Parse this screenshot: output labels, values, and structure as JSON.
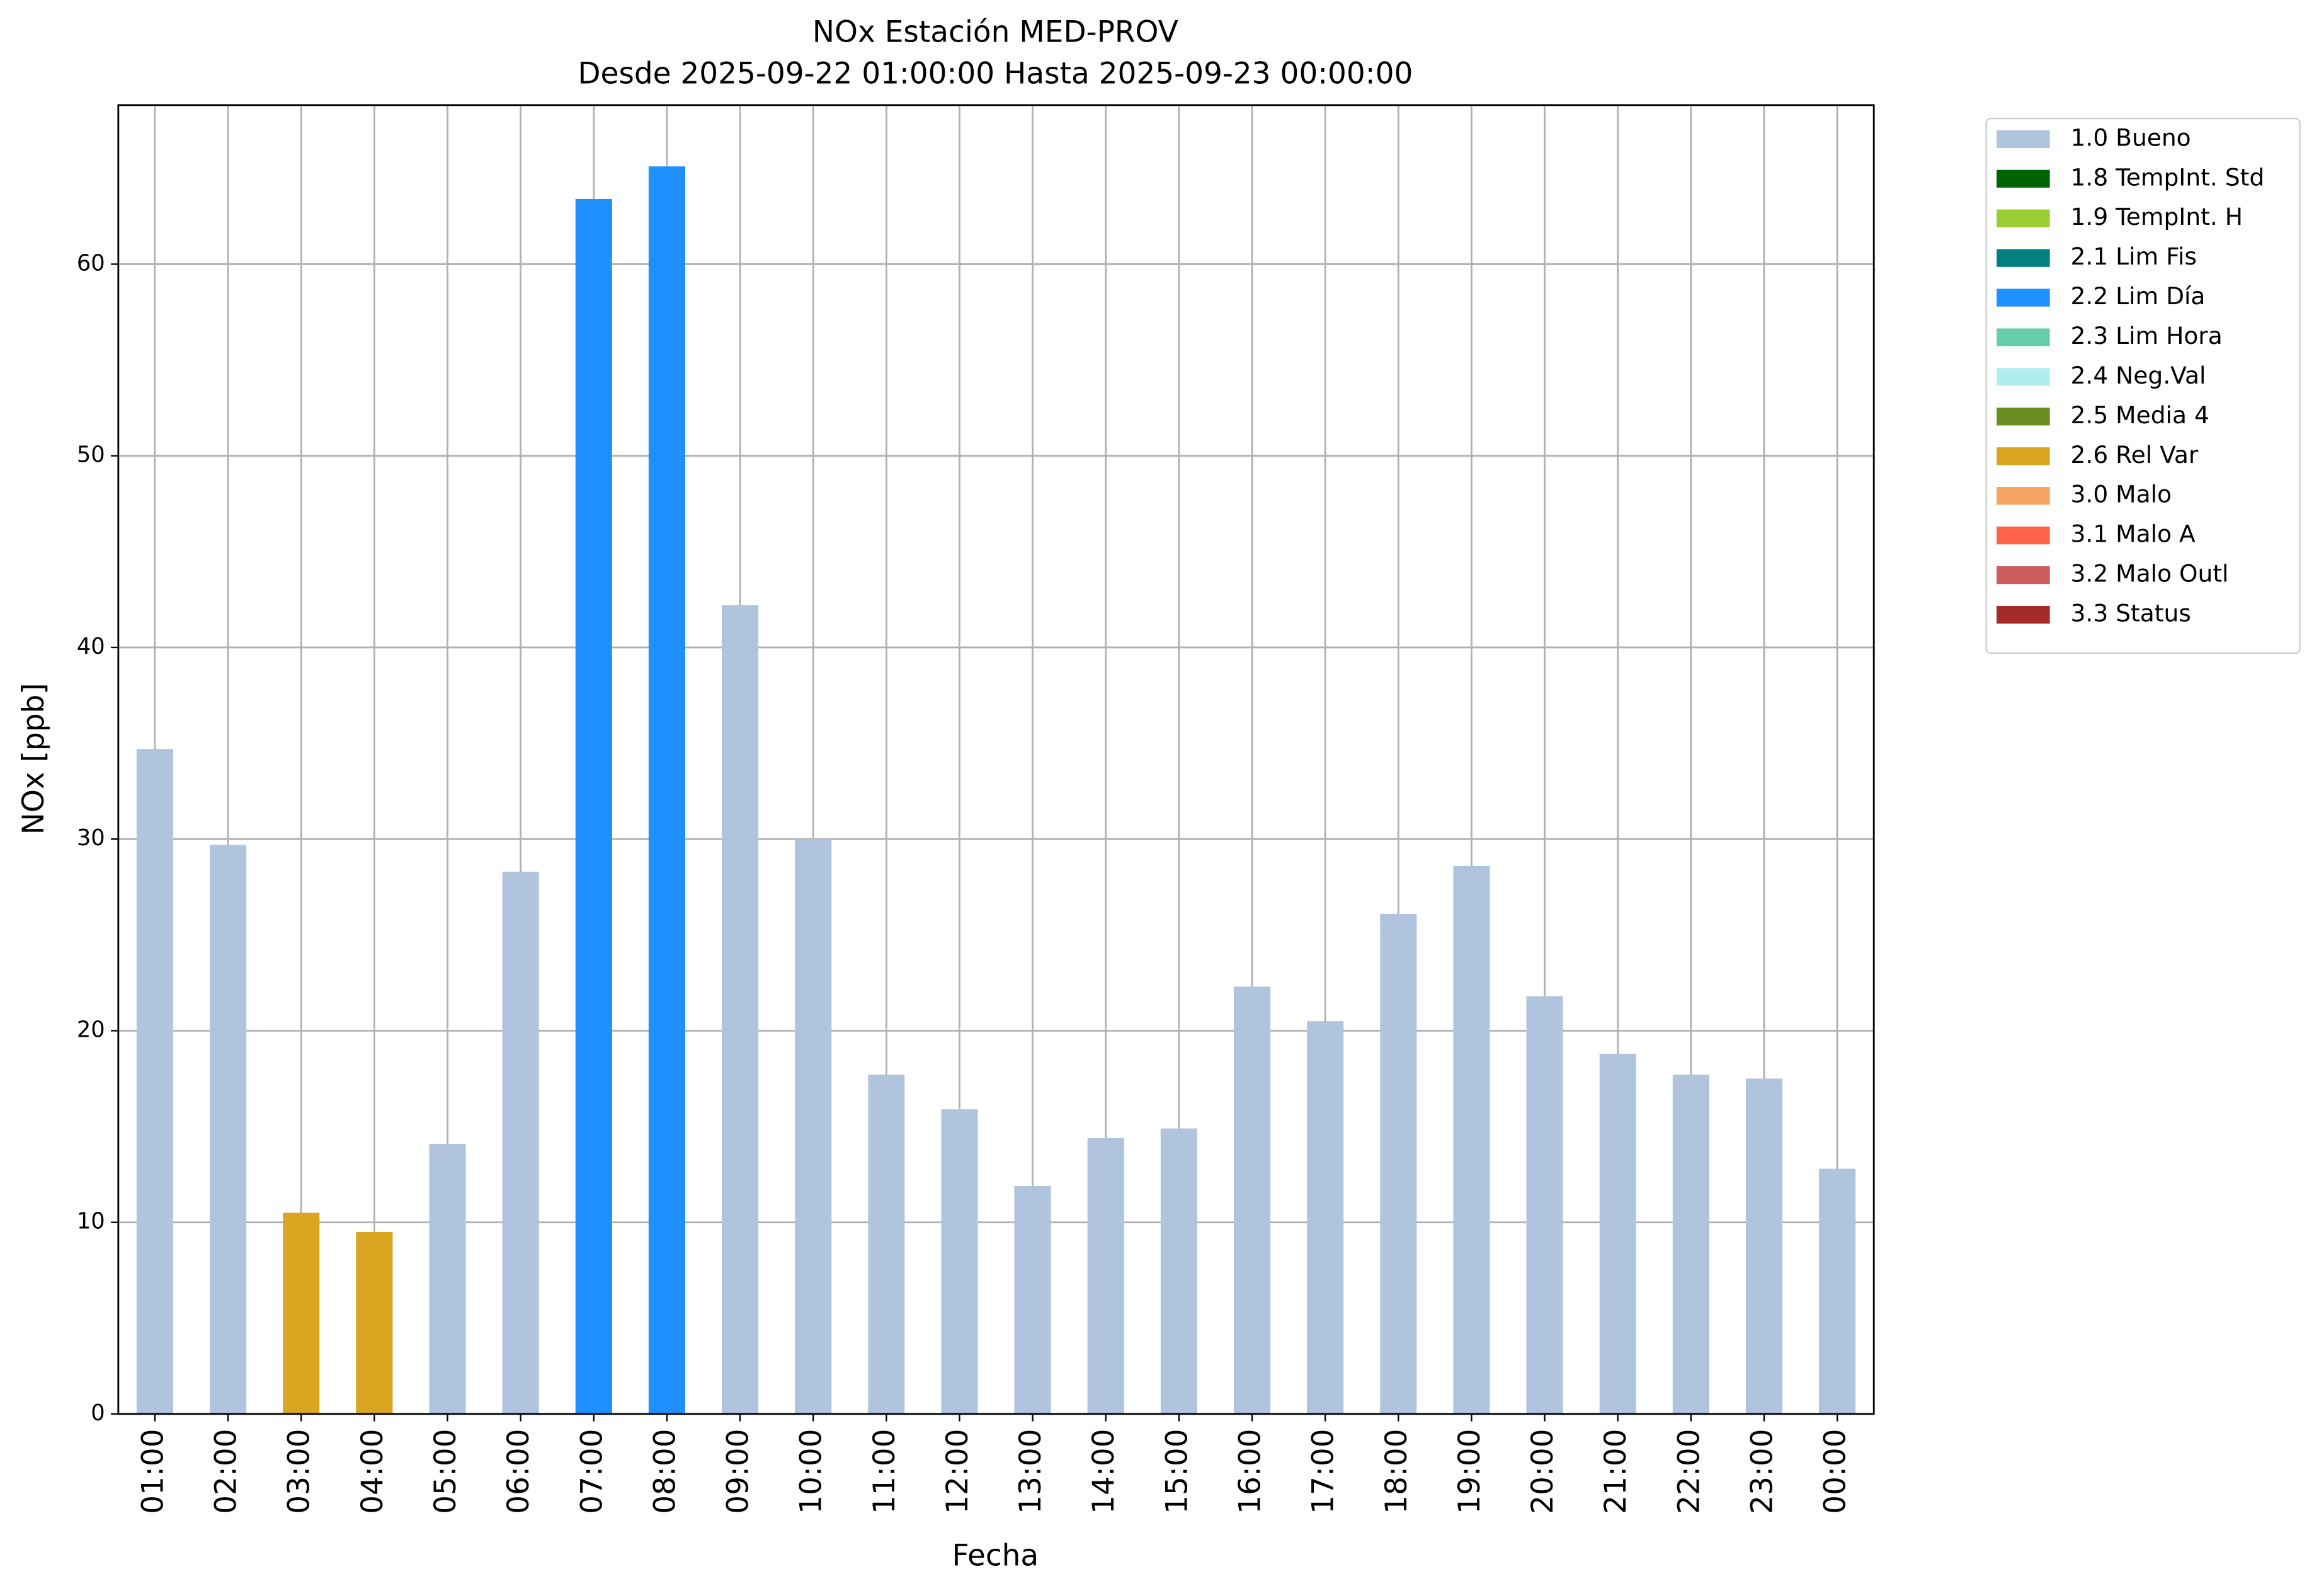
{
  "chart_data": {
    "type": "stacked_bar",
    "title": "NOx Estación MED-PROV",
    "subtitle": "Desde 2025-09-22 01:00:00 Hasta 2025-09-23 00:00:00",
    "x_label": "Fecha",
    "y_label": "NOx [ppb]",
    "categories": [
      "01:00",
      "02:00",
      "03:00",
      "04:00",
      "05:00",
      "06:00",
      "07:00",
      "08:00",
      "09:00",
      "10:00",
      "11:00",
      "12:00",
      "13:00",
      "14:00",
      "15:00",
      "16:00",
      "17:00",
      "18:00",
      "19:00",
      "20:00",
      "21:00",
      "22:00",
      "23:00",
      "00:00"
    ],
    "series": [
      {
        "name": "1.0 Bueno",
        "color": "#b0c4de",
        "values": [
          34.7,
          29.7,
          null,
          null,
          14.1,
          28.3,
          null,
          null,
          42.2,
          30.0,
          17.7,
          15.9,
          11.9,
          14.4,
          14.9,
          22.3,
          20.5,
          26.1,
          28.6,
          21.8,
          18.8,
          17.7,
          17.5,
          12.8
        ]
      },
      {
        "name": "1.8 TempInt. Std",
        "color": "#006400",
        "values": [
          null,
          null,
          null,
          null,
          null,
          null,
          null,
          null,
          null,
          null,
          null,
          null,
          null,
          null,
          null,
          null,
          null,
          null,
          null,
          null,
          null,
          null,
          null,
          null
        ]
      },
      {
        "name": "1.9 TempInt. H",
        "color": "#9acd32",
        "values": [
          null,
          null,
          null,
          null,
          null,
          null,
          null,
          null,
          null,
          null,
          null,
          null,
          null,
          null,
          null,
          null,
          null,
          null,
          null,
          null,
          null,
          null,
          null,
          null
        ]
      },
      {
        "name": "2.1 Lim Fis",
        "color": "#008080",
        "values": [
          null,
          null,
          null,
          null,
          null,
          null,
          null,
          null,
          null,
          null,
          null,
          null,
          null,
          null,
          null,
          null,
          null,
          null,
          null,
          null,
          null,
          null,
          null,
          null
        ]
      },
      {
        "name": "2.2 Lim Día",
        "color": "#1e90ff",
        "values": [
          null,
          null,
          null,
          null,
          null,
          null,
          63.4,
          65.1,
          null,
          null,
          null,
          null,
          null,
          null,
          null,
          null,
          null,
          null,
          null,
          null,
          null,
          null,
          null,
          null
        ]
      },
      {
        "name": "2.3 Lim Hora",
        "color": "#66cdaa",
        "values": [
          null,
          null,
          null,
          null,
          null,
          null,
          null,
          null,
          null,
          null,
          null,
          null,
          null,
          null,
          null,
          null,
          null,
          null,
          null,
          null,
          null,
          null,
          null,
          null
        ]
      },
      {
        "name": "2.4 Neg.Val",
        "color": "#afeeee",
        "values": [
          null,
          null,
          null,
          null,
          null,
          null,
          null,
          null,
          null,
          null,
          null,
          null,
          null,
          null,
          null,
          null,
          null,
          null,
          null,
          null,
          null,
          null,
          null,
          null
        ]
      },
      {
        "name": "2.5 Media 4",
        "color": "#6b8e23",
        "values": [
          null,
          null,
          null,
          null,
          null,
          null,
          null,
          null,
          null,
          null,
          null,
          null,
          null,
          null,
          null,
          null,
          null,
          null,
          null,
          null,
          null,
          null,
          null,
          null
        ]
      },
      {
        "name": "2.6 Rel Var",
        "color": "#daa520",
        "values": [
          null,
          null,
          10.5,
          9.5,
          null,
          null,
          null,
          null,
          null,
          null,
          null,
          null,
          null,
          null,
          null,
          null,
          null,
          null,
          null,
          null,
          null,
          null,
          null,
          null
        ]
      },
      {
        "name": "3.0 Malo",
        "color": "#f4a460",
        "values": [
          null,
          null,
          null,
          null,
          null,
          null,
          null,
          null,
          null,
          null,
          null,
          null,
          null,
          null,
          null,
          null,
          null,
          null,
          null,
          null,
          null,
          null,
          null,
          null
        ]
      },
      {
        "name": "3.1 Malo A",
        "color": "#ff6347",
        "values": [
          null,
          null,
          null,
          null,
          null,
          null,
          null,
          null,
          null,
          null,
          null,
          null,
          null,
          null,
          null,
          null,
          null,
          null,
          null,
          null,
          null,
          null,
          null,
          null
        ]
      },
      {
        "name": "3.2 Malo Outl",
        "color": "#cd5c5c",
        "values": [
          null,
          null,
          null,
          null,
          null,
          null,
          null,
          null,
          null,
          null,
          null,
          null,
          null,
          null,
          null,
          null,
          null,
          null,
          null,
          null,
          null,
          null,
          null,
          null
        ]
      },
      {
        "name": "3.3 Status",
        "color": "#a52a2a",
        "values": [
          null,
          null,
          null,
          null,
          null,
          null,
          null,
          null,
          null,
          null,
          null,
          null,
          null,
          null,
          null,
          null,
          null,
          null,
          null,
          null,
          null,
          null,
          null,
          null
        ]
      }
    ],
    "ylim": [
      0,
      68.3
    ],
    "yticks": [
      0,
      10,
      20,
      30,
      40,
      50,
      60
    ],
    "grid": true,
    "legend": "right"
  }
}
